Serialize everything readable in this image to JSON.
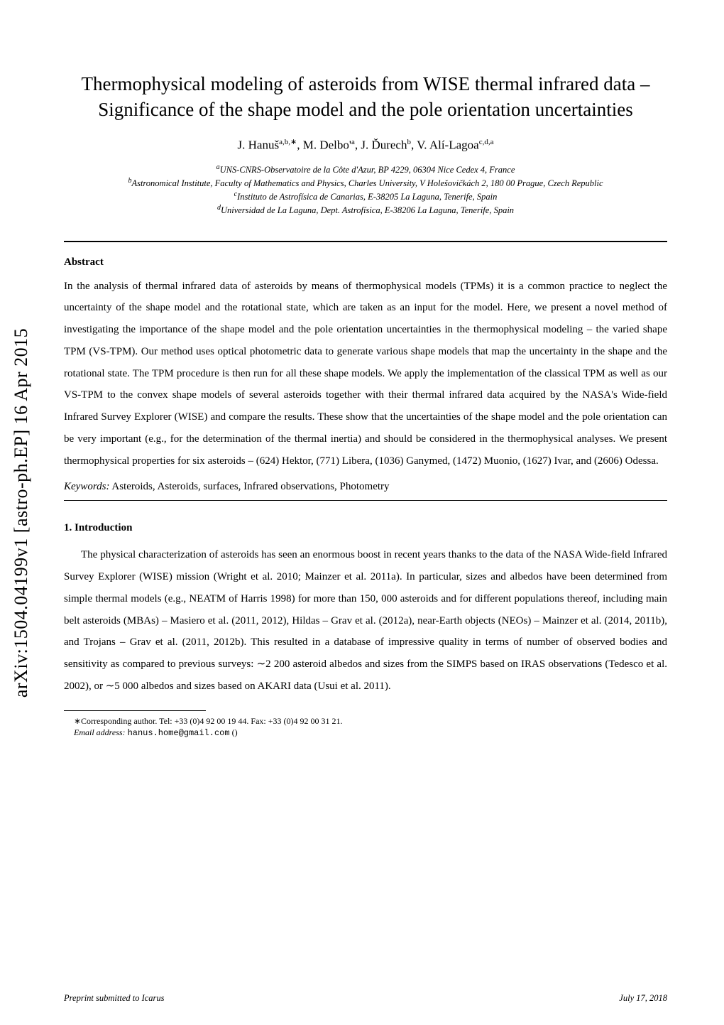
{
  "arxiv_id": "arXiv:1504.04199v1  [astro-ph.EP]  16 Apr 2015",
  "title": "Thermophysical modeling of asteroids from WISE thermal infrared data – Significance of the shape model and the pole orientation uncertainties",
  "authors_html": "J. Hanuš<sup>a,b,∗</sup>, M. Delbo'<sup>a</sup>, J. Ďurech<sup>b</sup>, V. Alí-Lagoa<sup>c,d,a</sup>",
  "affiliations": [
    {
      "sup": "a",
      "text": "UNS-CNRS-Observatoire de la Côte d'Azur, BP 4229, 06304 Nice Cedex 4, France"
    },
    {
      "sup": "b",
      "text": "Astronomical Institute, Faculty of Mathematics and Physics, Charles University, V Holešovičkách 2, 180 00 Prague, Czech Republic"
    },
    {
      "sup": "c",
      "text": "Instituto de Astrofísica de Canarias, E-38205 La Laguna, Tenerife, Spain"
    },
    {
      "sup": "d",
      "text": "Universidad de La Laguna, Dept. Astrofísica, E-38206 La Laguna, Tenerife, Spain"
    }
  ],
  "abstract_heading": "Abstract",
  "abstract": "In the analysis of thermal infrared data of asteroids by means of thermophysical models (TPMs) it is a common practice to neglect the uncertainty of the shape model and the rotational state, which are taken as an input for the model. Here, we present a novel method of investigating the importance of the shape model and the pole orientation uncertainties in the thermophysical modeling – the varied shape TPM (VS-TPM). Our method uses optical photometric data to generate various shape models that map the uncertainty in the shape and the rotational state. The TPM procedure is then run for all these shape models. We apply the implementation of the classical TPM as well as our VS-TPM to the convex shape models of several asteroids together with their thermal infrared data acquired by the NASA's Wide-field Infrared Survey Explorer (WISE) and compare the results. These show that the uncertainties of the shape model and the pole orientation can be very important (e.g., for the determination of the thermal inertia) and should be considered in the thermophysical analyses. We present thermophysical properties for six asteroids – (624) Hektor, (771) Libera, (1036) Ganymed, (1472) Muonio, (1627) Ivar, and (2606) Odessa.",
  "keywords_label": "Keywords:",
  "keywords_text": "  Asteroids, Asteroids, surfaces, Infrared observations, Photometry",
  "section1_heading": "1.  Introduction",
  "intro_paragraph": "The physical characterization of asteroids has seen an enormous boost in recent years thanks to the data of the NASA Wide-field Infrared Survey Explorer (WISE) mission (Wright et al. 2010; Mainzer et al. 2011a). In particular, sizes and albedos have been determined from simple thermal models (e.g., NEATM of Harris 1998) for more than 150, 000 asteroids and for different populations thereof, including main belt asteroids (MBAs) – Masiero et al. (2011, 2012), Hildas – Grav et al. (2012a), near-Earth objects (NEOs) – Mainzer et al. (2014, 2011b), and Trojans – Grav et al. (2011, 2012b). This resulted in a database of impressive quality in terms of number of observed bodies and sensitivity as compared to previous surveys: ∼2 200 asteroid albedos and sizes from the SIMPS based on IRAS observations (Tedesco et al. 2002), or ∼5 000 albedos and sizes based on AKARI data (Usui et al. 2011).",
  "footnote_corresponding": "∗Corresponding author. Tel: +33 (0)4 92 00 19 44. Fax: +33 (0)4 92 00 31 21.",
  "footnote_email_label": "Email address: ",
  "footnote_email": "hanus.home@gmail.com",
  "footnote_email_suffix": " ()",
  "footer_left": "Preprint submitted to Icarus",
  "footer_right": "July 17, 2018"
}
